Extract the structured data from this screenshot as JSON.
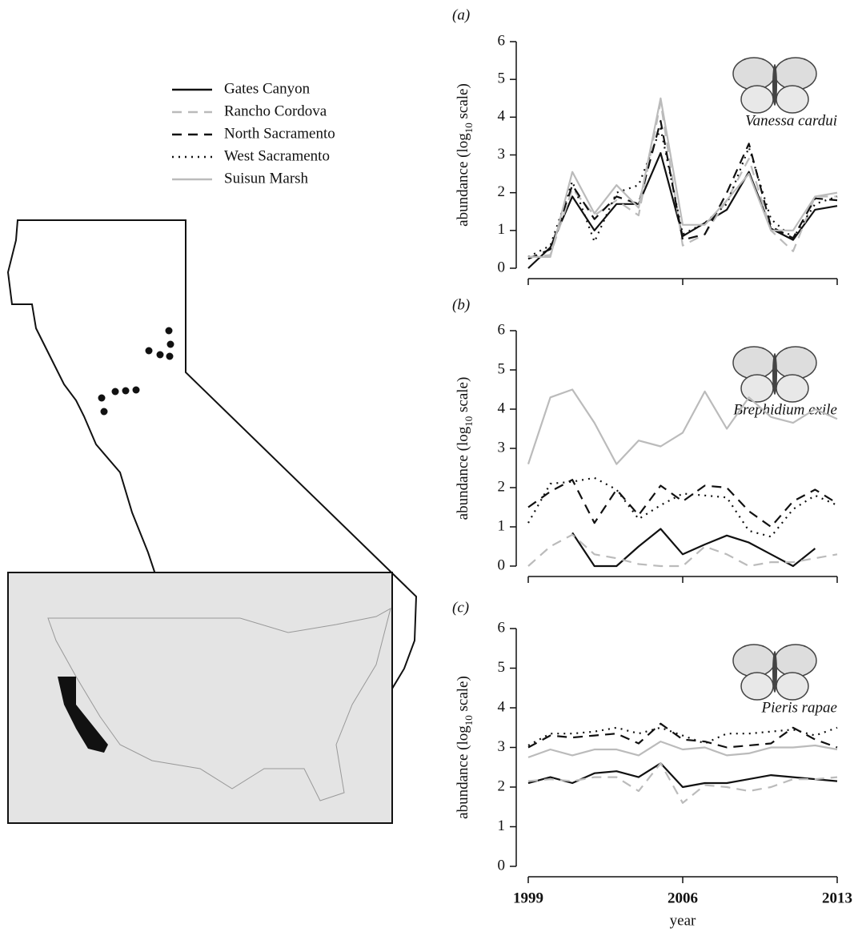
{
  "chart_data": [
    {
      "type": "line",
      "panel_label": "(a)",
      "species": "Vanessa cardui",
      "y_label": [
        "abundance (log",
        "10",
        " scale)"
      ],
      "x": [
        1999,
        2000,
        2001,
        2002,
        2003,
        2004,
        2005,
        2006,
        2007,
        2008,
        2009,
        2010,
        2011,
        2012,
        2013
      ],
      "xlim": [
        1999,
        2013
      ],
      "xticks": [
        1999,
        2006,
        2013
      ],
      "xtick_labels": false,
      "ylim": [
        0,
        6
      ],
      "yticks": [
        0,
        1,
        2,
        3,
        4,
        5,
        6
      ],
      "series": [
        {
          "name": "Gates Canyon",
          "color": "#111111",
          "dash": "solid",
          "values": [
            0,
            0.55,
            1.9,
            1.0,
            1.7,
            1.7,
            3.05,
            0.85,
            1.2,
            1.55,
            2.55,
            1.05,
            0.75,
            1.55,
            1.65
          ]
        },
        {
          "name": "Rancho Cordova",
          "color": "#bbbbbb",
          "dash": "dashed",
          "values": [
            0.3,
            0.35,
            2.1,
            1.4,
            1.8,
            1.4,
            4.4,
            0.6,
            0.9,
            1.8,
            2.9,
            1.0,
            0.45,
            1.9,
            1.9
          ]
        },
        {
          "name": "North Sacramento",
          "color": "#111111",
          "dash": "dashed",
          "values": [
            0.25,
            0.5,
            2.2,
            1.3,
            1.9,
            1.7,
            3.9,
            0.75,
            0.9,
            2.0,
            3.3,
            1.1,
            0.8,
            1.85,
            1.8
          ]
        },
        {
          "name": "West Sacramento",
          "color": "#111111",
          "dash": "dotted",
          "values": [
            0.3,
            0.6,
            2.3,
            0.7,
            2.0,
            2.2,
            3.7,
            0.9,
            1.2,
            1.7,
            3.2,
            1.3,
            0.8,
            1.7,
            1.9
          ]
        },
        {
          "name": "Suisun Marsh",
          "color": "#bbbbbb",
          "dash": "solid",
          "values": [
            0.3,
            0.3,
            2.55,
            1.45,
            2.2,
            1.6,
            4.5,
            1.15,
            1.15,
            1.8,
            2.5,
            1.0,
            1.0,
            1.9,
            2.0
          ]
        }
      ]
    },
    {
      "type": "line",
      "panel_label": "(b)",
      "species": "Brephidium exile",
      "y_label": [
        "abundance (log",
        "10",
        " scale)"
      ],
      "x": [
        1999,
        2000,
        2001,
        2002,
        2003,
        2004,
        2005,
        2006,
        2007,
        2008,
        2009,
        2010,
        2011,
        2012,
        2013
      ],
      "xlim": [
        1999,
        2013
      ],
      "xticks": [
        1999,
        2006,
        2013
      ],
      "xtick_labels": false,
      "ylim": [
        0,
        6
      ],
      "yticks": [
        0,
        1,
        2,
        3,
        4,
        5,
        6
      ],
      "series": [
        {
          "color": "#111111",
          "dash": "solid",
          "values": [
            null,
            null,
            0.85,
            0,
            0,
            0.5,
            0.95,
            0.3,
            0.55,
            0.78,
            0.6,
            0.3,
            0,
            0.45,
            null
          ]
        },
        {
          "color": "#bbbbbb",
          "dash": "dashed",
          "values": [
            0,
            0.5,
            0.8,
            0.3,
            0.2,
            0.05,
            0,
            0,
            0.5,
            0.3,
            0,
            0.1,
            0.1,
            0.2,
            0.3
          ]
        },
        {
          "color": "#111111",
          "dash": "dashed",
          "values": [
            1.5,
            1.9,
            2.2,
            1.1,
            1.95,
            1.3,
            2.05,
            1.65,
            2.05,
            2.0,
            1.4,
            1.0,
            1.65,
            1.95,
            1.6
          ]
        },
        {
          "color": "#111111",
          "dash": "dotted",
          "values": [
            1.1,
            2.1,
            2.15,
            2.25,
            1.95,
            1.2,
            1.55,
            1.85,
            1.8,
            1.75,
            0.9,
            0.75,
            1.45,
            1.8,
            1.55
          ]
        },
        {
          "color": "#bbbbbb",
          "dash": "solid",
          "values": [
            2.6,
            4.3,
            4.5,
            3.65,
            2.6,
            3.2,
            3.05,
            3.4,
            4.45,
            3.5,
            4.3,
            3.8,
            3.65,
            4.0,
            3.75
          ]
        }
      ]
    },
    {
      "type": "line",
      "panel_label": "(c)",
      "species": "Pieris rapae",
      "y_label": [
        "abundance (log",
        "10",
        " scale)"
      ],
      "x_label": "year",
      "x": [
        1999,
        2000,
        2001,
        2002,
        2003,
        2004,
        2005,
        2006,
        2007,
        2008,
        2009,
        2010,
        2011,
        2012,
        2013
      ],
      "xlim": [
        1999,
        2013
      ],
      "xticks": [
        1999,
        2006,
        2013
      ],
      "xtick_labels": true,
      "ylim": [
        0,
        6
      ],
      "yticks": [
        0,
        1,
        2,
        3,
        4,
        5,
        6
      ],
      "series": [
        {
          "color": "#111111",
          "dash": "solid",
          "values": [
            2.1,
            2.25,
            2.1,
            2.35,
            2.4,
            2.25,
            2.6,
            2.0,
            2.1,
            2.1,
            2.2,
            2.3,
            2.25,
            2.2,
            2.15
          ]
        },
        {
          "color": "#bbbbbb",
          "dash": "dashed",
          "values": [
            2.15,
            2.2,
            2.15,
            2.25,
            2.25,
            1.9,
            2.6,
            1.6,
            2.05,
            2.0,
            1.9,
            2.0,
            2.2,
            2.2,
            2.25
          ]
        },
        {
          "color": "#111111",
          "dash": "dashed",
          "values": [
            3.0,
            3.3,
            3.25,
            3.3,
            3.35,
            3.1,
            3.6,
            3.2,
            3.15,
            3.0,
            3.05,
            3.1,
            3.5,
            3.2,
            3.0
          ]
        },
        {
          "color": "#111111",
          "dash": "dotted",
          "values": [
            3.05,
            3.35,
            3.35,
            3.4,
            3.5,
            3.35,
            3.5,
            3.3,
            3.1,
            3.35,
            3.35,
            3.4,
            3.45,
            3.3,
            3.5
          ]
        },
        {
          "color": "#bbbbbb",
          "dash": "solid",
          "values": [
            2.75,
            2.95,
            2.8,
            2.95,
            2.95,
            2.8,
            3.15,
            2.95,
            3.0,
            2.8,
            2.85,
            3.0,
            3.0,
            3.05,
            2.95
          ]
        }
      ]
    }
  ]
}
